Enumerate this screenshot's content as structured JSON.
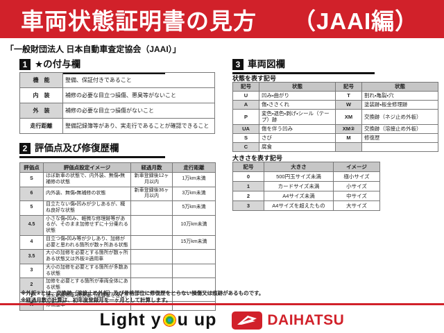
{
  "banner": {
    "title": "車両状態証明書の見方",
    "edition": "（JAAI編）",
    "red": "#d1212a"
  },
  "subtitle": "「一般財団法人 日本自動車査定協会（JAAI）」",
  "section1": {
    "number": "1",
    "title": "★の付与欄",
    "rows": [
      [
        "機　能",
        "整備、保証付きであること"
      ],
      [
        "内　装",
        "補修の必要な目立つ損傷、悪臭等がないこと"
      ],
      [
        "外　装",
        "補修の必要な目立つ損傷がないこと"
      ],
      [
        "走行距離",
        "整備記録簿等があり、実走行であることが確認できること"
      ]
    ]
  },
  "section2": {
    "number": "2",
    "title": "評価点及び修復歴欄",
    "headers": [
      "評価点",
      "評価点設定イメージ",
      "経過月数",
      "走行距離"
    ],
    "rows": [
      [
        "S",
        "ほぼ新車の状態で、内外装、無傷・無補修の状態",
        "新車登録後12ヶ月以内",
        "1万km未満"
      ],
      [
        "6",
        "内外装、無傷・無補修の状態",
        "新車登録後36ヶ月以内",
        "3万km未満"
      ],
      [
        "5",
        "目立たない傷・凹みが少しあるが、概ね良好な状態",
        "",
        "5万km未満"
      ],
      [
        "4.5",
        "小さな傷・凹み、軽微な修理跡等があるが、そのまま加修せずに十分乗れる状態",
        "",
        "10万km未満"
      ],
      [
        "4",
        "目立つ傷・凹み等が少しあり、加修が必要と思われる箇所が数ヶ所ある状態",
        "",
        "15万km未満"
      ],
      [
        "3.5",
        "大小の加修を必要とする箇所が数ヶ所ある状態又は外板②適用車",
        "",
        ""
      ],
      [
        "3",
        "大小の加修を必要とする箇所が多数ある状態",
        "",
        ""
      ],
      [
        "2",
        "加修を必要とする箇所が車両全体にある状態",
        "",
        ""
      ],
      [
        "1",
        "消火剤散布車・冠水車（塩害車を含む）",
        "",
        ""
      ],
      [
        "R",
        "修復歴車",
        "",
        ""
      ]
    ]
  },
  "section3": {
    "number": "3",
    "title": "車両図欄",
    "symbols": {
      "label": "状態を表す記号",
      "headers": [
        "記号",
        "状態",
        "記号",
        "状態"
      ],
      "rows": [
        [
          "U",
          "凹み・曲がり",
          "T",
          "割れ・亀裂・穴"
        ],
        [
          "A",
          "傷・ささくれ",
          "W",
          "塗装跡・板金修理跡"
        ],
        [
          "P",
          "変色・退色・剥げ・シール（テープ）跡",
          "XM",
          "交換跡（ネジ止め外板）"
        ],
        [
          "UA",
          "傷を伴う凹み",
          "XM②",
          "交換跡（溶接止め外板）"
        ],
        [
          "S",
          "さび",
          "M",
          "修復歴"
        ],
        [
          "C",
          "腐食",
          "",
          ""
        ]
      ]
    },
    "sizes": {
      "label": "大きさを表す記号",
      "headers": [
        "記号",
        "大きさ",
        "イメージ"
      ],
      "rows": [
        [
          "0",
          "500円玉サイズ未満",
          "極小サイズ"
        ],
        [
          "1",
          "カードサイズ未満",
          "小サイズ"
        ],
        [
          "2",
          "A4サイズ未満",
          "中サイズ"
        ],
        [
          "3",
          "A4サイズを超えたもの",
          "大サイズ"
        ]
      ]
    }
  },
  "notes": [
    "※外板②とは、交換跡（溶接止め外板）及び骨格部位に修復歴をとらない損傷又は痕跡があるものです。",
    "※経過月数の計算は、初年度登録月を一ヶ月として計算します。"
  ],
  "footer": {
    "slogan_left": "Light y",
    "slogan_right": "u up",
    "brand": "DAIHATSU"
  }
}
